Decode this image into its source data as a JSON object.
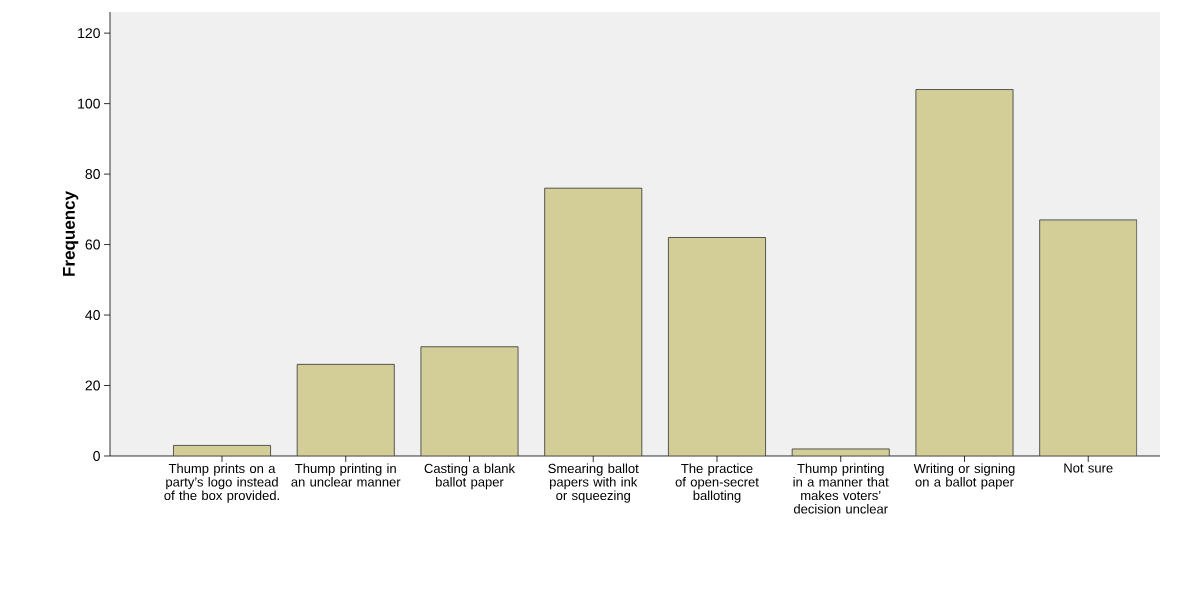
{
  "chart_data": {
    "type": "bar",
    "ylabel": "Frequency",
    "categories": [
      "Thump prints on a party’s logo instead of the box provided.",
      "Thump printing in an unclear manner",
      "Casting a blank ballot paper",
      "Smearing ballot papers with ink or squeezing",
      "The practice of open-secret balloting",
      "Thump printing in a manner that makes voters’ decision unclear",
      "Writing or signing on a ballot paper",
      "Not sure"
    ],
    "values": [
      3,
      26,
      31,
      76,
      62,
      2,
      104,
      67
    ],
    "color": "#d3ce97",
    "ylim": [
      0,
      126
    ],
    "yticks": [
      0,
      20,
      40,
      60,
      80,
      100,
      120
    ]
  }
}
